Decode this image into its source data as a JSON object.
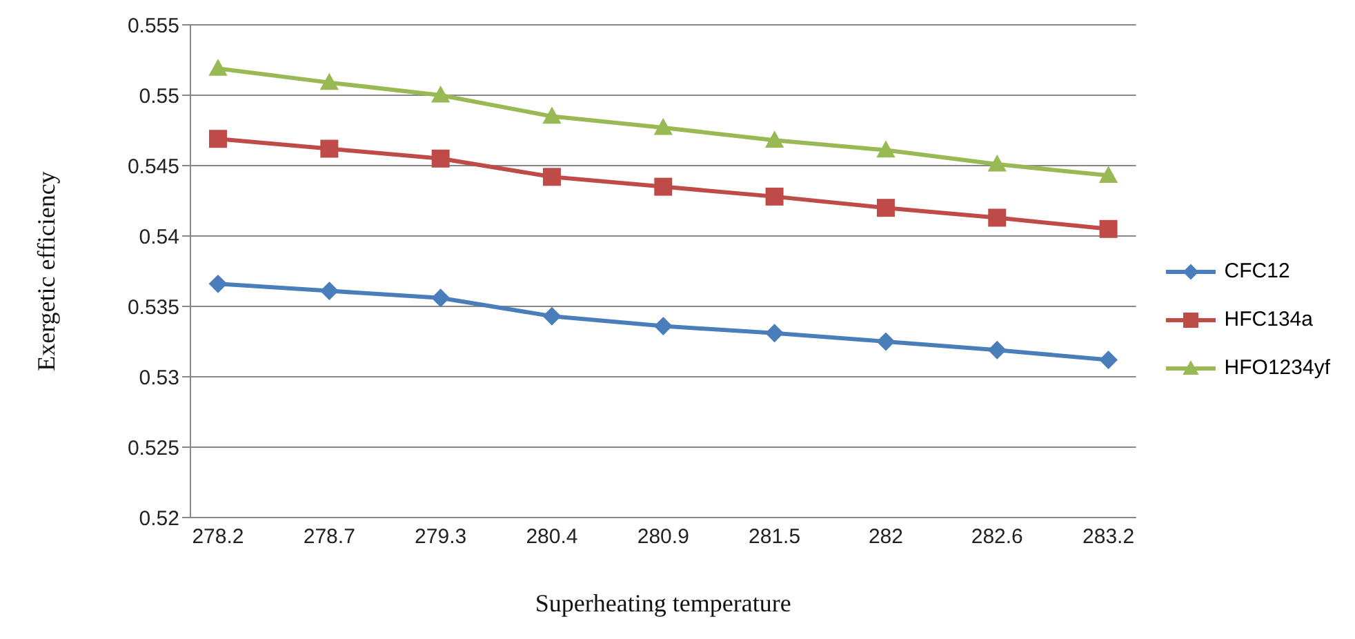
{
  "chart_data": {
    "type": "line",
    "xlabel": "Superheating temperature",
    "ylabel": "Exergetic efficiency",
    "categories": [
      "278.2",
      "278.7",
      "279.3",
      "280.4",
      "280.9",
      "281.5",
      "282",
      "282.6",
      "283.2"
    ],
    "series": [
      {
        "name": "CFC12",
        "color": "#4a7ebb",
        "marker": "diamond",
        "values": [
          0.5366,
          0.5361,
          0.5356,
          0.5343,
          0.5336,
          0.5331,
          0.5325,
          0.5319,
          0.5312
        ]
      },
      {
        "name": "HFC134a",
        "color": "#be4b48",
        "marker": "square",
        "values": [
          0.5469,
          0.5462,
          0.5455,
          0.5442,
          0.5435,
          0.5428,
          0.542,
          0.5413,
          0.5405
        ]
      },
      {
        "name": "HFO1234yf",
        "color": "#98b954",
        "marker": "triangle",
        "values": [
          0.5519,
          0.5509,
          0.55,
          0.5485,
          0.5477,
          0.5468,
          0.5461,
          0.5451,
          0.5443
        ]
      }
    ],
    "ylim": [
      0.52,
      0.555
    ],
    "yticks": [
      0.52,
      0.525,
      0.53,
      0.535,
      0.54,
      0.545,
      0.55,
      0.555
    ],
    "grid": "y",
    "legend": "right",
    "line_style": "solid"
  }
}
